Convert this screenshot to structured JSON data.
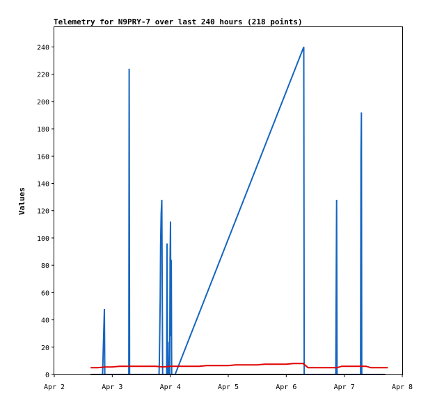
{
  "chart_data": {
    "type": "line",
    "title": "Telemetry for N9PRY-7 over last 240 hours (218 points)",
    "xlabel": "",
    "ylabel": "Values",
    "xlim": [
      "2024-04-02T00:00",
      "2024-04-08T00:00"
    ],
    "ylim": [
      0,
      255
    ],
    "x_tick_labels": [
      "Apr 2",
      "Apr 3",
      "Apr 4",
      "Apr 5",
      "Apr 6",
      "Apr 7",
      "Apr 8"
    ],
    "x_ticks": [
      "2024-04-02T00:00",
      "2024-04-03T00:00",
      "2024-04-04T00:00",
      "2024-04-05T00:00",
      "2024-04-06T00:00",
      "2024-04-07T00:00",
      "2024-04-08T00:00"
    ],
    "y_ticks": [
      0,
      20,
      40,
      60,
      80,
      100,
      120,
      140,
      160,
      180,
      200,
      220,
      240
    ],
    "grid": false,
    "legend": "none",
    "series": [
      {
        "color": "#1565c0",
        "points": [
          [
            "2024-04-02T18:00",
            0
          ],
          [
            "2024-04-02T20:00",
            0
          ],
          [
            "2024-04-02T20:45",
            48
          ],
          [
            "2024-04-02T20:55",
            0
          ],
          [
            "2024-04-03T06:50",
            0
          ],
          [
            "2024-04-03T07:00",
            224
          ],
          [
            "2024-04-03T07:10",
            0
          ],
          [
            "2024-04-03T19:20",
            0
          ],
          [
            "2024-04-03T19:30",
            10
          ],
          [
            "2024-04-03T19:40",
            32
          ],
          [
            "2024-04-03T19:50",
            55
          ],
          [
            "2024-04-03T20:00",
            96
          ],
          [
            "2024-04-03T20:15",
            118
          ],
          [
            "2024-04-03T20:30",
            128
          ],
          [
            "2024-04-03T20:50",
            0
          ],
          [
            "2024-04-03T22:30",
            0
          ],
          [
            "2024-04-03T22:40",
            96
          ],
          [
            "2024-04-03T22:55",
            0
          ],
          [
            "2024-04-03T23:05",
            24
          ],
          [
            "2024-04-03T23:15",
            0
          ],
          [
            "2024-04-03T23:45",
            0
          ],
          [
            "2024-04-03T23:55",
            84
          ],
          [
            "2024-04-04T00:05",
            112
          ],
          [
            "2024-04-04T00:15",
            28
          ],
          [
            "2024-04-04T00:25",
            84
          ],
          [
            "2024-04-04T00:35",
            0
          ],
          [
            "2024-04-04T02:00",
            0
          ],
          [
            "2024-04-06T07:15",
            240
          ],
          [
            "2024-04-06T07:25",
            0
          ],
          [
            "2024-04-06T20:30",
            0
          ],
          [
            "2024-04-06T20:40",
            64
          ],
          [
            "2024-04-06T20:50",
            128
          ],
          [
            "2024-04-06T21:00",
            0
          ],
          [
            "2024-04-07T06:45",
            0
          ],
          [
            "2024-04-07T06:55",
            160
          ],
          [
            "2024-04-07T07:05",
            192
          ],
          [
            "2024-04-07T07:15",
            0
          ],
          [
            "2024-04-07T16:00",
            0
          ]
        ]
      },
      {
        "color": "#e00000",
        "points": [
          [
            "2024-04-02T15:00",
            5
          ],
          [
            "2024-04-02T18:00",
            5
          ],
          [
            "2024-04-02T21:00",
            5.5
          ],
          [
            "2024-04-03T00:00",
            5.5
          ],
          [
            "2024-04-03T03:00",
            6
          ],
          [
            "2024-04-03T06:00",
            6
          ],
          [
            "2024-04-03T12:00",
            6
          ],
          [
            "2024-04-03T18:00",
            6
          ],
          [
            "2024-04-03T21:00",
            5.5
          ],
          [
            "2024-04-04T00:00",
            6
          ],
          [
            "2024-04-04T12:00",
            6
          ],
          [
            "2024-04-04T15:00",
            6.5
          ],
          [
            "2024-04-05T00:00",
            6.5
          ],
          [
            "2024-04-05T03:00",
            7
          ],
          [
            "2024-04-05T12:00",
            7
          ],
          [
            "2024-04-05T15:00",
            7.5
          ],
          [
            "2024-04-06T00:00",
            7.5
          ],
          [
            "2024-04-06T03:00",
            8
          ],
          [
            "2024-04-06T07:00",
            8
          ],
          [
            "2024-04-06T09:00",
            5
          ],
          [
            "2024-04-06T21:00",
            5
          ],
          [
            "2024-04-06T23:00",
            6
          ],
          [
            "2024-04-07T09:00",
            6
          ],
          [
            "2024-04-07T11:00",
            5
          ],
          [
            "2024-04-07T18:00",
            5
          ]
        ]
      },
      {
        "color": "#000000",
        "points": [
          [
            "2024-04-02T15:00",
            0
          ],
          [
            "2024-04-07T17:00",
            0
          ]
        ]
      }
    ]
  }
}
